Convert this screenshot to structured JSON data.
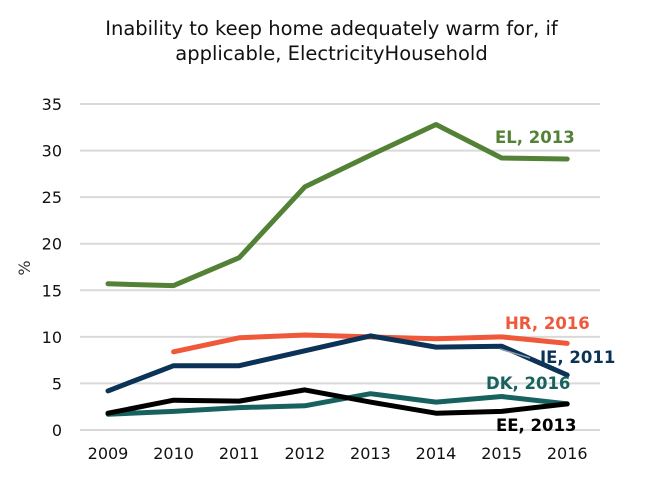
{
  "chart_data": {
    "type": "line",
    "title": "Inability to keep home adequately warm for, if applicable, ElectricityHousehold",
    "title_lines": [
      "Inability to keep home adequately warm for, if",
      "applicable, ElectricityHousehold"
    ],
    "xlabel": "",
    "ylabel": "%",
    "ylim": [
      0,
      35
    ],
    "yticks": [
      0,
      5,
      10,
      15,
      20,
      25,
      30,
      35
    ],
    "ytick_labels": [
      "0",
      "5",
      "10",
      "15",
      "20",
      "25",
      "30",
      "35"
    ],
    "x": [
      "2009",
      "2010",
      "2011",
      "2012",
      "2013",
      "2014",
      "2015",
      "2016"
    ],
    "grid": true,
    "legend": "none (inline labels at right end of lines)",
    "series": [
      {
        "name": "EL",
        "label": "EL, 2013",
        "color": "#538135",
        "values": [
          15.7,
          15.5,
          18.5,
          26.1,
          29.5,
          32.8,
          29.2,
          29.1
        ]
      },
      {
        "name": "HR",
        "label": "HR, 2016",
        "color": "#f0583a",
        "values": [
          null,
          8.4,
          9.9,
          10.2,
          10.0,
          9.8,
          10.0,
          9.3
        ]
      },
      {
        "name": "IE",
        "label": "IE, 2011",
        "color": "#0b3357",
        "values": [
          4.2,
          6.9,
          6.9,
          8.5,
          10.1,
          8.9,
          9.0,
          5.9
        ]
      },
      {
        "name": "DK",
        "label": "DK, 2016",
        "color": "#17625f",
        "values": [
          1.7,
          2.0,
          2.4,
          2.6,
          3.9,
          3.0,
          3.6,
          2.8
        ]
      },
      {
        "name": "EE",
        "label": "EE, 2013",
        "color": "#000000",
        "values": [
          1.8,
          3.2,
          3.1,
          4.3,
          3.0,
          1.8,
          2.0,
          2.8
        ]
      }
    ]
  }
}
